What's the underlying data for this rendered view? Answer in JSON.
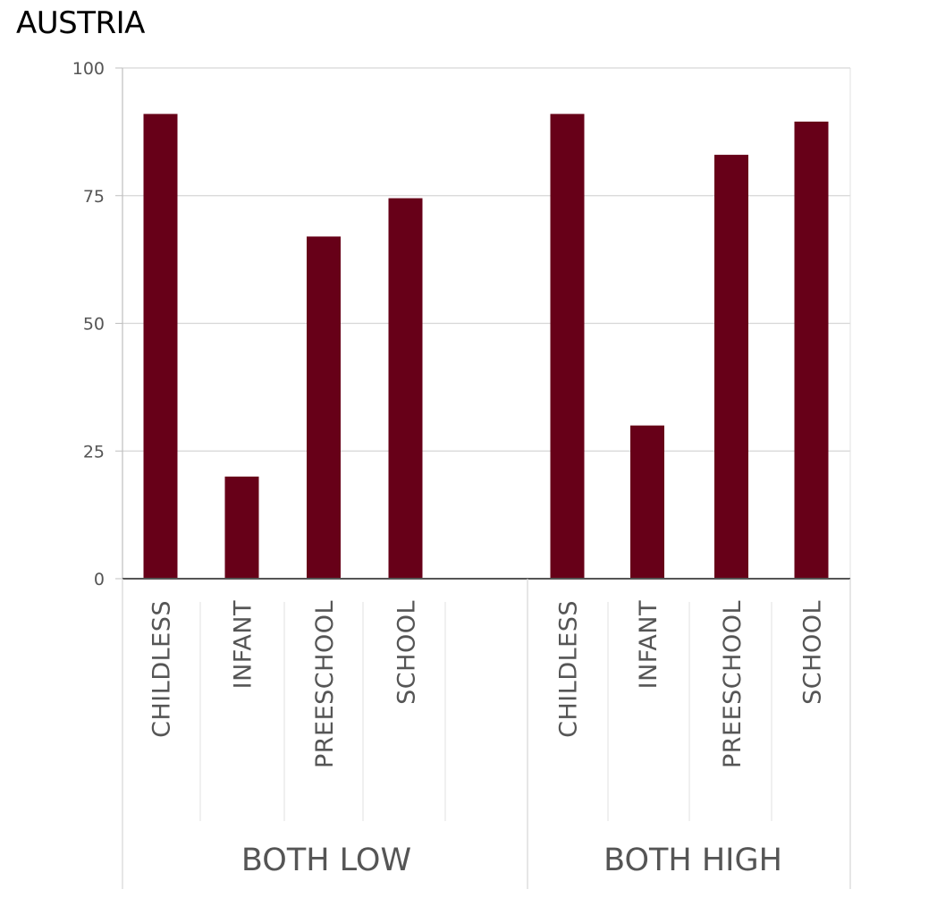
{
  "chart_data": {
    "type": "bar",
    "title": "AUSTRIA",
    "ylim": [
      0,
      100
    ],
    "yticks": [
      0,
      25,
      50,
      75,
      100
    ],
    "grid": true,
    "bar_color": "#670018",
    "groups": [
      {
        "name": "BOTH LOW",
        "categories": [
          "CHILDLESS",
          "INFANT",
          "PREESCHOOL",
          "SCHOOL"
        ],
        "values": [
          91,
          20,
          67,
          74.5
        ]
      },
      {
        "name": "BOTH HIGH",
        "categories": [
          "CHILDLESS",
          "INFANT",
          "PREESCHOOL",
          "SCHOOL"
        ],
        "values": [
          91,
          30,
          83,
          89.5
        ]
      }
    ]
  }
}
